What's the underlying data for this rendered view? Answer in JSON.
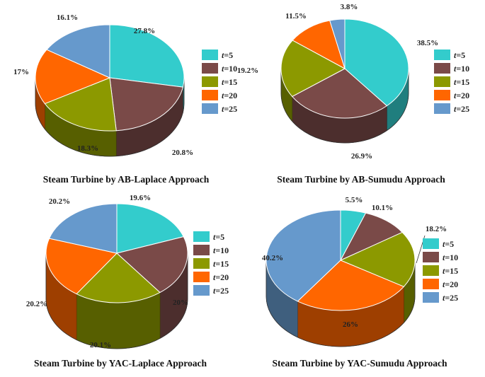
{
  "chart_data": [
    {
      "type": "pie",
      "title": "Steam Turbine by AB-Laplace Approach",
      "categories": [
        "t=5",
        "t=10",
        "t=15",
        "t=20",
        "t=25"
      ],
      "values": [
        27.8,
        20.8,
        18.3,
        17,
        16.1
      ],
      "labels": [
        "27.8%",
        "20.8%",
        "18.3%",
        "17%",
        "16.1%"
      ],
      "legend": {
        "position": "right",
        "entries": [
          "t=5",
          "t=10",
          "t=15",
          "t=20",
          "t=25"
        ]
      },
      "style": "3d"
    },
    {
      "type": "pie",
      "title": "Steam Turbine by AB-Sumudu Approach",
      "categories": [
        "t=5",
        "t=10",
        "t=15",
        "t=20",
        "t=25"
      ],
      "values": [
        38.5,
        26.9,
        19.2,
        11.5,
        3.8
      ],
      "labels": [
        "38.5%",
        "26.9%",
        "19.2%",
        "11.5%",
        "3.8%"
      ],
      "legend": {
        "position": "right",
        "entries": [
          "t=5",
          "t=10",
          "t=15",
          "t=20",
          "t=25"
        ]
      },
      "style": "3d"
    },
    {
      "type": "pie",
      "title": "Steam Turbine by YAC-Laplace Approach",
      "categories": [
        "t=5",
        "t=10",
        "t=15",
        "t=20",
        "t=25"
      ],
      "values": [
        19.6,
        20,
        20.1,
        20.2,
        20.2
      ],
      "labels": [
        "19.6%",
        "20%",
        "20.1%",
        "20.2%",
        "20.2%"
      ],
      "legend": {
        "position": "right",
        "entries": [
          "t=5",
          "t=10",
          "t=15",
          "t=20",
          "t=25"
        ]
      },
      "style": "3d"
    },
    {
      "type": "pie",
      "title": "Steam Turbine by YAC-Sumudu Approach",
      "categories": [
        "t=5",
        "t=10",
        "t=15",
        "t=20",
        "t=25"
      ],
      "values": [
        5.5,
        10.1,
        18.2,
        26,
        40.2
      ],
      "labels": [
        "5.5%",
        "10.1%",
        "18.2%",
        "26%",
        "40.2%"
      ],
      "legend": {
        "position": "right",
        "entries": [
          "t=5",
          "t=10",
          "t=15",
          "t=20",
          "t=25"
        ]
      },
      "style": "3d"
    }
  ],
  "colors": {
    "t=5": "#33cccc",
    "t=10": "#7a4a48",
    "t=15": "#8c9900",
    "t=20": "#ff6600",
    "t=25": "#6699cc"
  }
}
